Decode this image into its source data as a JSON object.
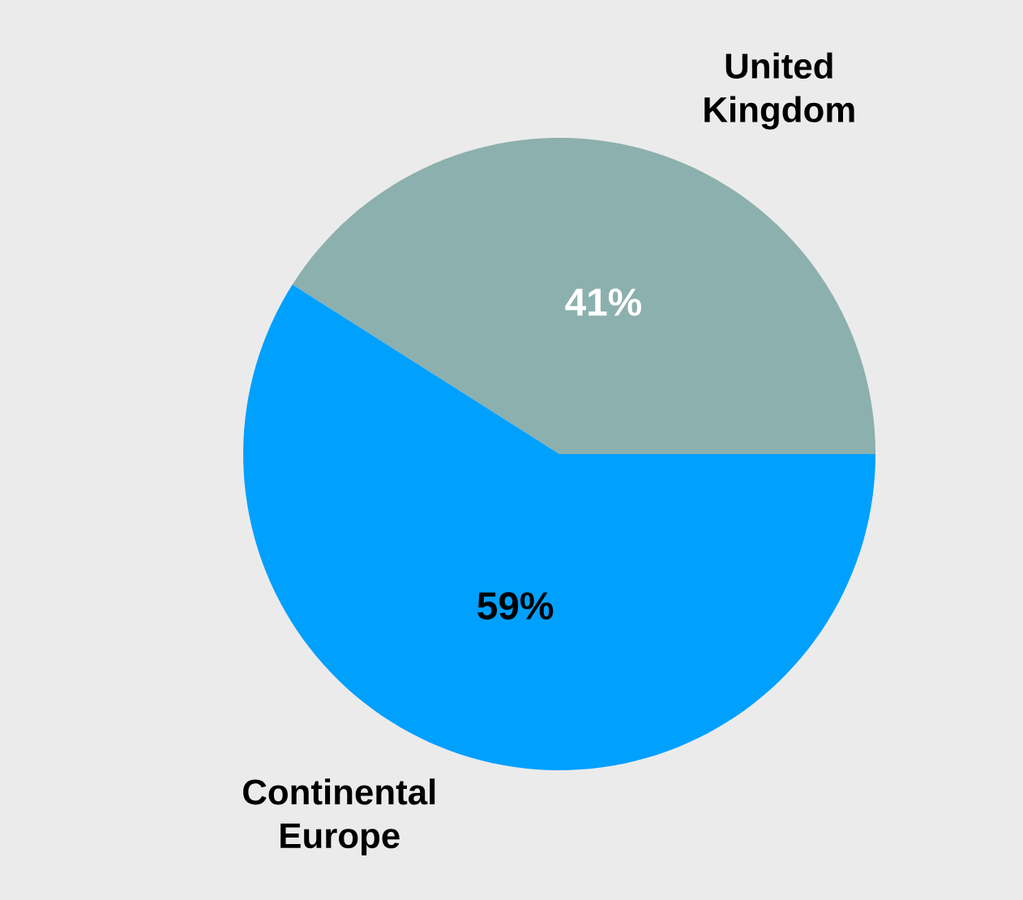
{
  "chart_data": {
    "type": "pie",
    "categories": [
      "United Kingdom",
      "Continental Europe"
    ],
    "values": [
      41,
      59
    ],
    "colors": [
      "#8cb0ae",
      "#00a0ff"
    ],
    "value_labels": [
      "41%",
      "59%"
    ]
  }
}
